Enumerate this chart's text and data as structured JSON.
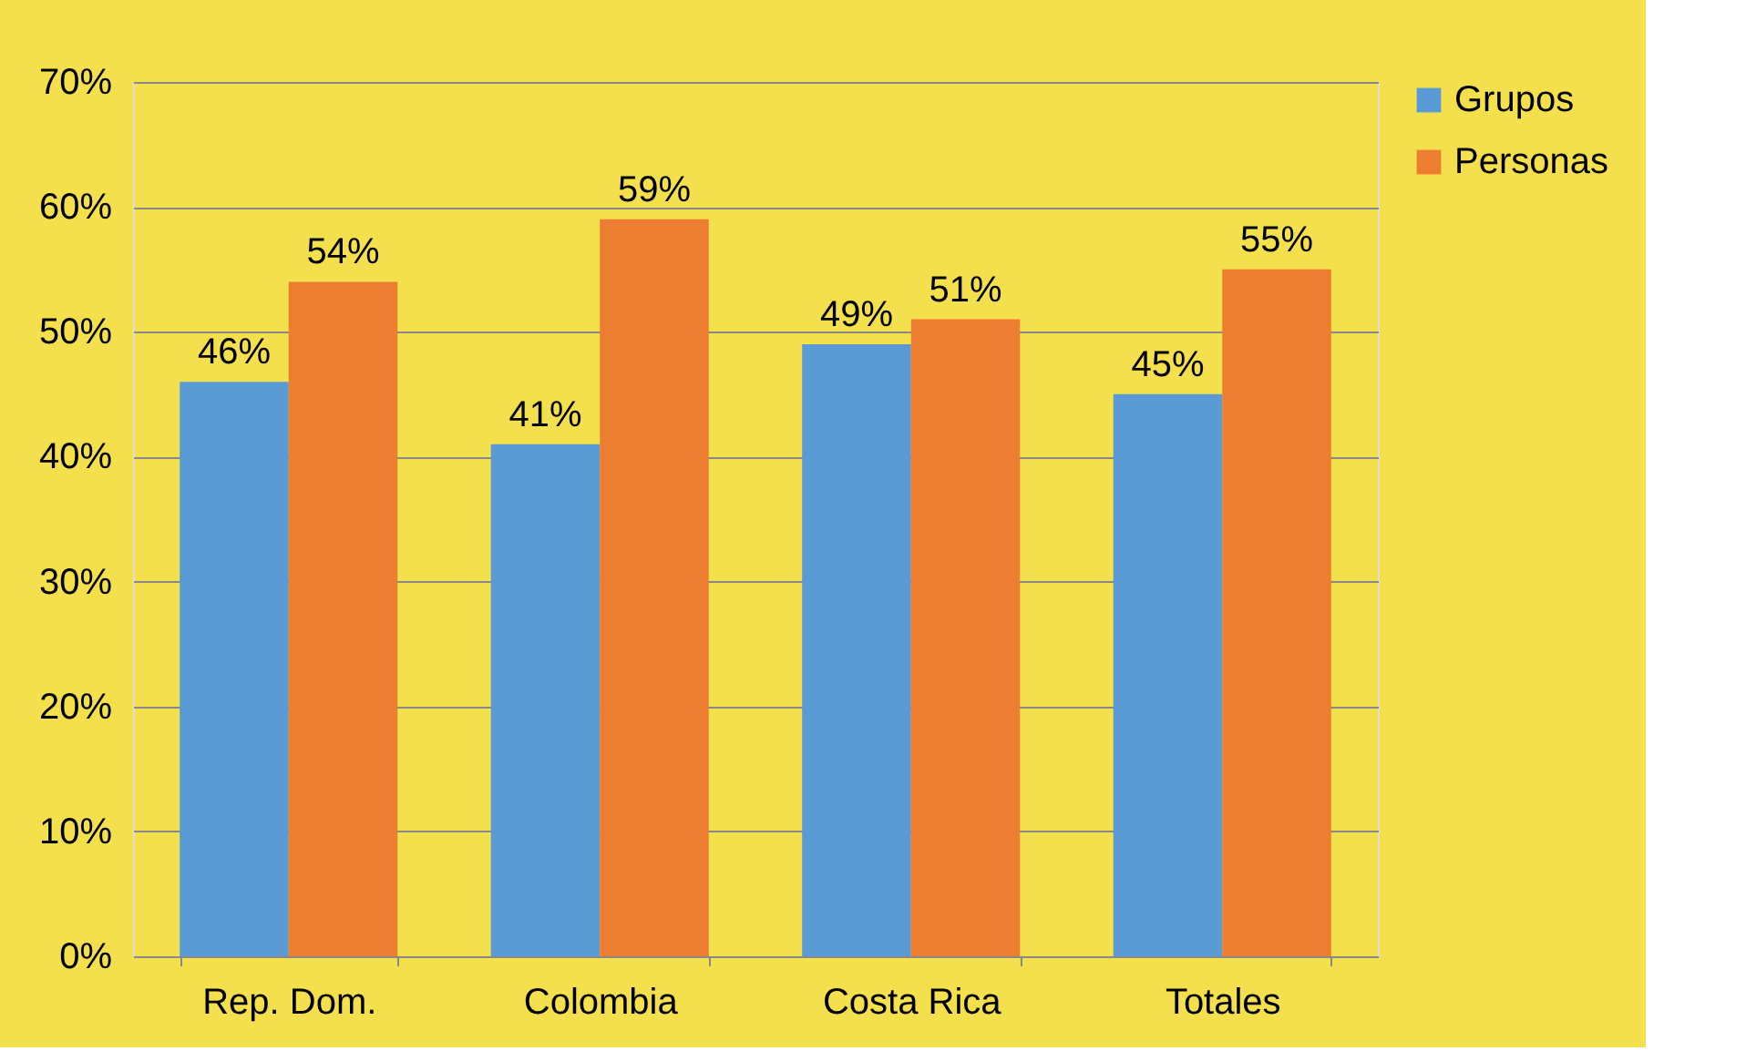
{
  "chart_data": {
    "type": "bar",
    "categories": [
      "Rep. Dom.",
      "Colombia",
      "Costa Rica",
      "Totales"
    ],
    "series": [
      {
        "name": "Grupos",
        "color": "#5b9bd5",
        "values": [
          46,
          41,
          49,
          45
        ],
        "value_labels": [
          "46%",
          "41%",
          "49%",
          "45%"
        ]
      },
      {
        "name": "Personas",
        "color": "#ed7d31",
        "values": [
          54,
          59,
          51,
          55
        ],
        "value_labels": [
          "54%",
          "59%",
          "51%",
          "55%"
        ]
      }
    ],
    "ylim": [
      0,
      70
    ],
    "yticks": [
      {
        "value": 0,
        "label": "0%"
      },
      {
        "value": 10,
        "label": "10%"
      },
      {
        "value": 20,
        "label": "20%"
      },
      {
        "value": 30,
        "label": "30%"
      },
      {
        "value": 40,
        "label": "40%"
      },
      {
        "value": 50,
        "label": "50%"
      },
      {
        "value": 60,
        "label": "60%"
      },
      {
        "value": 70,
        "label": "70%"
      }
    ],
    "grid": "y",
    "legend": "right"
  }
}
